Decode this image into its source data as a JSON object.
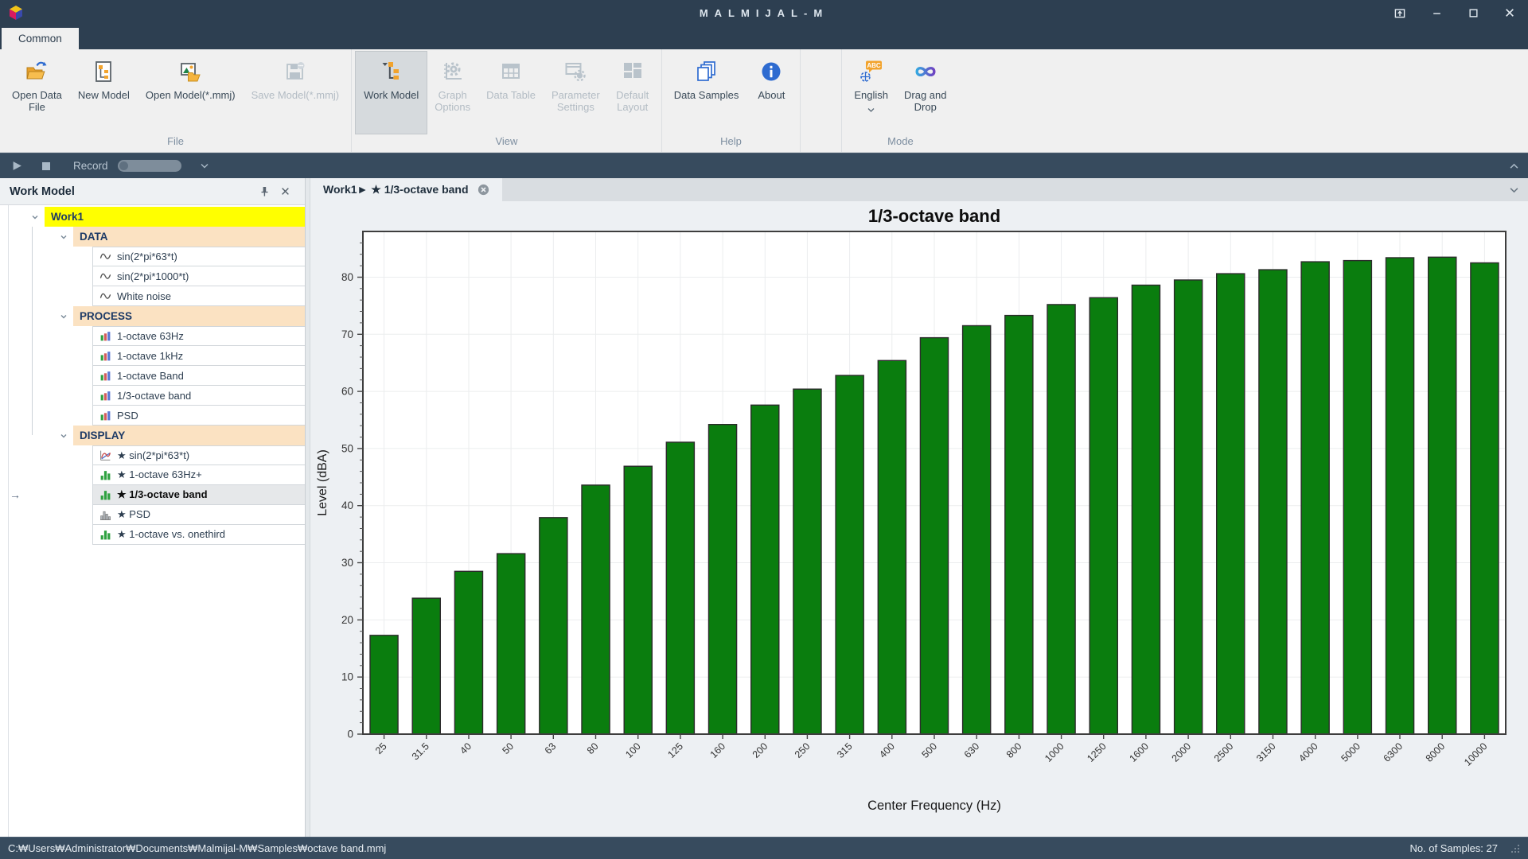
{
  "window": {
    "title": "MALMIJAL-M"
  },
  "colors": {
    "chrome_dark": "#2d3f51",
    "accent_orange": "#f2a32c",
    "accent_blue": "#2e6bd0",
    "selection_yellow": "#ffff00",
    "section_peach": "#fbe2c2",
    "bar_green": "#0a7d0e"
  },
  "ribbon": {
    "tab_label": "Common",
    "groups": [
      {
        "label": "File",
        "buttons": [
          {
            "label": "Open Data\nFile",
            "icon": "open-data-file",
            "state": "normal"
          },
          {
            "label": "New Model",
            "icon": "new-model",
            "state": "normal"
          },
          {
            "label": "Open Model(*.mmj)",
            "icon": "open-model",
            "state": "normal"
          },
          {
            "label": "Save Model(*.mmj)",
            "icon": "save-model",
            "state": "disabled"
          }
        ]
      },
      {
        "label": "View",
        "buttons": [
          {
            "label": "Work Model",
            "icon": "work-model",
            "state": "active"
          },
          {
            "label": "Graph\nOptions",
            "icon": "graph-options",
            "state": "disabled"
          },
          {
            "label": "Data Table",
            "icon": "data-table",
            "state": "disabled"
          },
          {
            "label": "Parameter\nSettings",
            "icon": "parameter-settings",
            "state": "disabled"
          },
          {
            "label": "Default\nLayout",
            "icon": "default-layout",
            "state": "disabled"
          }
        ]
      },
      {
        "label": "Help",
        "buttons": [
          {
            "label": "Data Samples",
            "icon": "data-samples",
            "state": "normal"
          },
          {
            "label": "About",
            "icon": "about",
            "state": "normal"
          }
        ]
      },
      {
        "label": "",
        "buttons": []
      },
      {
        "label": "Mode",
        "buttons": [
          {
            "label": "English",
            "icon": "english",
            "state": "normal",
            "caret": true
          },
          {
            "label": "Drag and\nDrop",
            "icon": "drag-drop",
            "state": "normal"
          }
        ]
      }
    ]
  },
  "recordbar": {
    "label": "Record"
  },
  "sidebar": {
    "title": "Work Model",
    "tree": [
      {
        "type": "root",
        "label": "Work1"
      },
      {
        "type": "group",
        "label": "DATA"
      },
      {
        "type": "item",
        "label": "sin(2*pi*63*t)",
        "icon": "sine-wave"
      },
      {
        "type": "item",
        "label": "sin(2*pi*1000*t)",
        "icon": "sine-wave"
      },
      {
        "type": "item",
        "label": "White noise",
        "icon": "sine-wave"
      },
      {
        "type": "group",
        "label": "PROCESS"
      },
      {
        "type": "item",
        "label": "1-octave 63Hz",
        "icon": "bar-chart-rgb"
      },
      {
        "type": "item",
        "label": "1-octave 1kHz",
        "icon": "bar-chart-rgb"
      },
      {
        "type": "item",
        "label": "1-octave Band",
        "icon": "bar-chart-rgb"
      },
      {
        "type": "item",
        "label": "1/3-octave band",
        "icon": "bar-chart-rgb"
      },
      {
        "type": "item",
        "label": "PSD",
        "icon": "bar-chart-rgb"
      },
      {
        "type": "group",
        "label": "DISPLAY"
      },
      {
        "type": "item",
        "label": "★ sin(2*pi*63*t)",
        "icon": "line-chart"
      },
      {
        "type": "item",
        "label": "★ 1-octave 63Hz+",
        "icon": "bar-chart-green"
      },
      {
        "type": "item",
        "label": "★ 1/3-octave band",
        "icon": "bar-chart-green",
        "selected": true
      },
      {
        "type": "item",
        "label": "★ PSD",
        "icon": "bar-chart-gray"
      },
      {
        "type": "item",
        "label": "★ 1-octave vs. onethird",
        "icon": "bar-chart-green"
      }
    ]
  },
  "content": {
    "tab_label": "Work1► ★ 1/3-octave band"
  },
  "chart_data": {
    "type": "bar",
    "title": "1/3-octave band",
    "xlabel": "Center Frequency (Hz)",
    "ylabel": "Level (dBA)",
    "categories": [
      "25",
      "31.5",
      "40",
      "50",
      "63",
      "80",
      "100",
      "125",
      "160",
      "200",
      "250",
      "315",
      "400",
      "500",
      "630",
      "800",
      "1000",
      "1250",
      "1600",
      "2000",
      "2500",
      "3150",
      "4000",
      "5000",
      "6300",
      "8000",
      "10000"
    ],
    "values": [
      17.3,
      23.8,
      28.5,
      31.6,
      37.9,
      43.6,
      46.9,
      51.1,
      54.2,
      57.6,
      60.4,
      62.8,
      65.4,
      69.4,
      71.5,
      73.3,
      75.2,
      76.4,
      78.6,
      79.5,
      80.6,
      81.3,
      82.7,
      82.9,
      83.4,
      83.5,
      82.5
    ],
    "ylim": [
      0,
      88
    ],
    "ytick_step": 10,
    "ytick_max": 80,
    "grid": true,
    "legend": false,
    "bar_color": "#0a7d0e",
    "bar_edge": "#2b2b2b"
  },
  "statusbar": {
    "path": "C:₩Users₩Administrator₩Documents₩Malmijal-M₩Samples₩octave band.mmj",
    "samples": "No. of Samples: 27"
  }
}
